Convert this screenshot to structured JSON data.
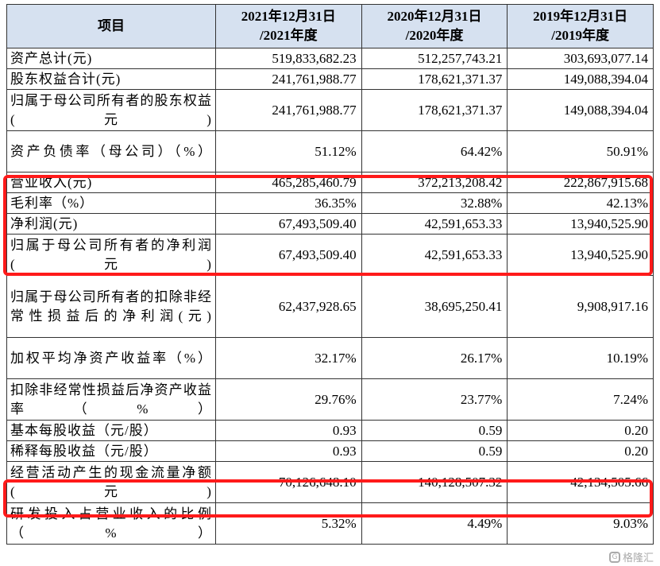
{
  "table": {
    "headers": [
      {
        "line1": "项目",
        "line2": ""
      },
      {
        "line1": "2021年12月31日",
        "line2": "/2021年度"
      },
      {
        "line1": "2020年12月31日",
        "line2": "/2020年度"
      },
      {
        "line1": "2019年12月31日",
        "line2": "/2019年度"
      }
    ],
    "rows": [
      {
        "label": "资产总计(元)",
        "v2021": "519,833,682.23",
        "v2020": "512,257,743.21",
        "v2019": "303,693,077.14"
      },
      {
        "label": "股东权益合计(元)",
        "v2021": "241,761,988.77",
        "v2020": "178,621,371.37",
        "v2019": "149,088,394.04"
      },
      {
        "label": "归属于母公司所有者的股东权益(元)",
        "v2021": "241,761,988.77",
        "v2020": "178,621,371.37",
        "v2019": "149,088,394.04"
      },
      {
        "label": "资产负债率（母公司）（%）",
        "v2021": "51.12%",
        "v2020": "64.42%",
        "v2019": "50.91%"
      },
      {
        "label": "营业收入(元)",
        "v2021": "465,285,460.79",
        "v2020": "372,213,208.42",
        "v2019": "222,867,915.68"
      },
      {
        "label": "毛利率（%）",
        "v2021": "36.35%",
        "v2020": "32.88%",
        "v2019": "42.13%"
      },
      {
        "label": "净利润(元)",
        "v2021": "67,493,509.40",
        "v2020": "42,591,653.33",
        "v2019": "13,940,525.90"
      },
      {
        "label": "归属于母公司所有者的净利润(元)",
        "v2021": "67,493,509.40",
        "v2020": "42,591,653.33",
        "v2019": "13,940,525.90"
      },
      {
        "label": "归属于母公司所有者的扣除非经常性损益后的净利润(元)",
        "v2021": "62,437,928.65",
        "v2020": "38,695,250.41",
        "v2019": "9,908,917.16"
      },
      {
        "label": "加权平均净资产收益率（%）",
        "v2021": "32.17%",
        "v2020": "26.17%",
        "v2019": "10.19%"
      },
      {
        "label": "扣除非经常性损益后净资产收益率（%）",
        "v2021": "29.76%",
        "v2020": "23.77%",
        "v2019": "7.24%"
      },
      {
        "label": "基本每股收益（元/股）",
        "v2021": "0.93",
        "v2020": "0.59",
        "v2019": "0.20"
      },
      {
        "label": "稀释每股收益（元/股）",
        "v2021": "0.93",
        "v2020": "0.59",
        "v2019": "0.20"
      },
      {
        "label": "经营活动产生的现金流量净额(元)",
        "v2021": "70,126,648.10",
        "v2020": "140,128,507.32",
        "v2019": "42,134,505.66"
      },
      {
        "label": "研发投入占营业收入的比例（%）",
        "v2021": "5.32%",
        "v2020": "4.49%",
        "v2019": "9.03%"
      }
    ]
  },
  "highlight_color": "#ff1a1a",
  "watermark": {
    "logo": "G",
    "text": "格隆汇"
  }
}
